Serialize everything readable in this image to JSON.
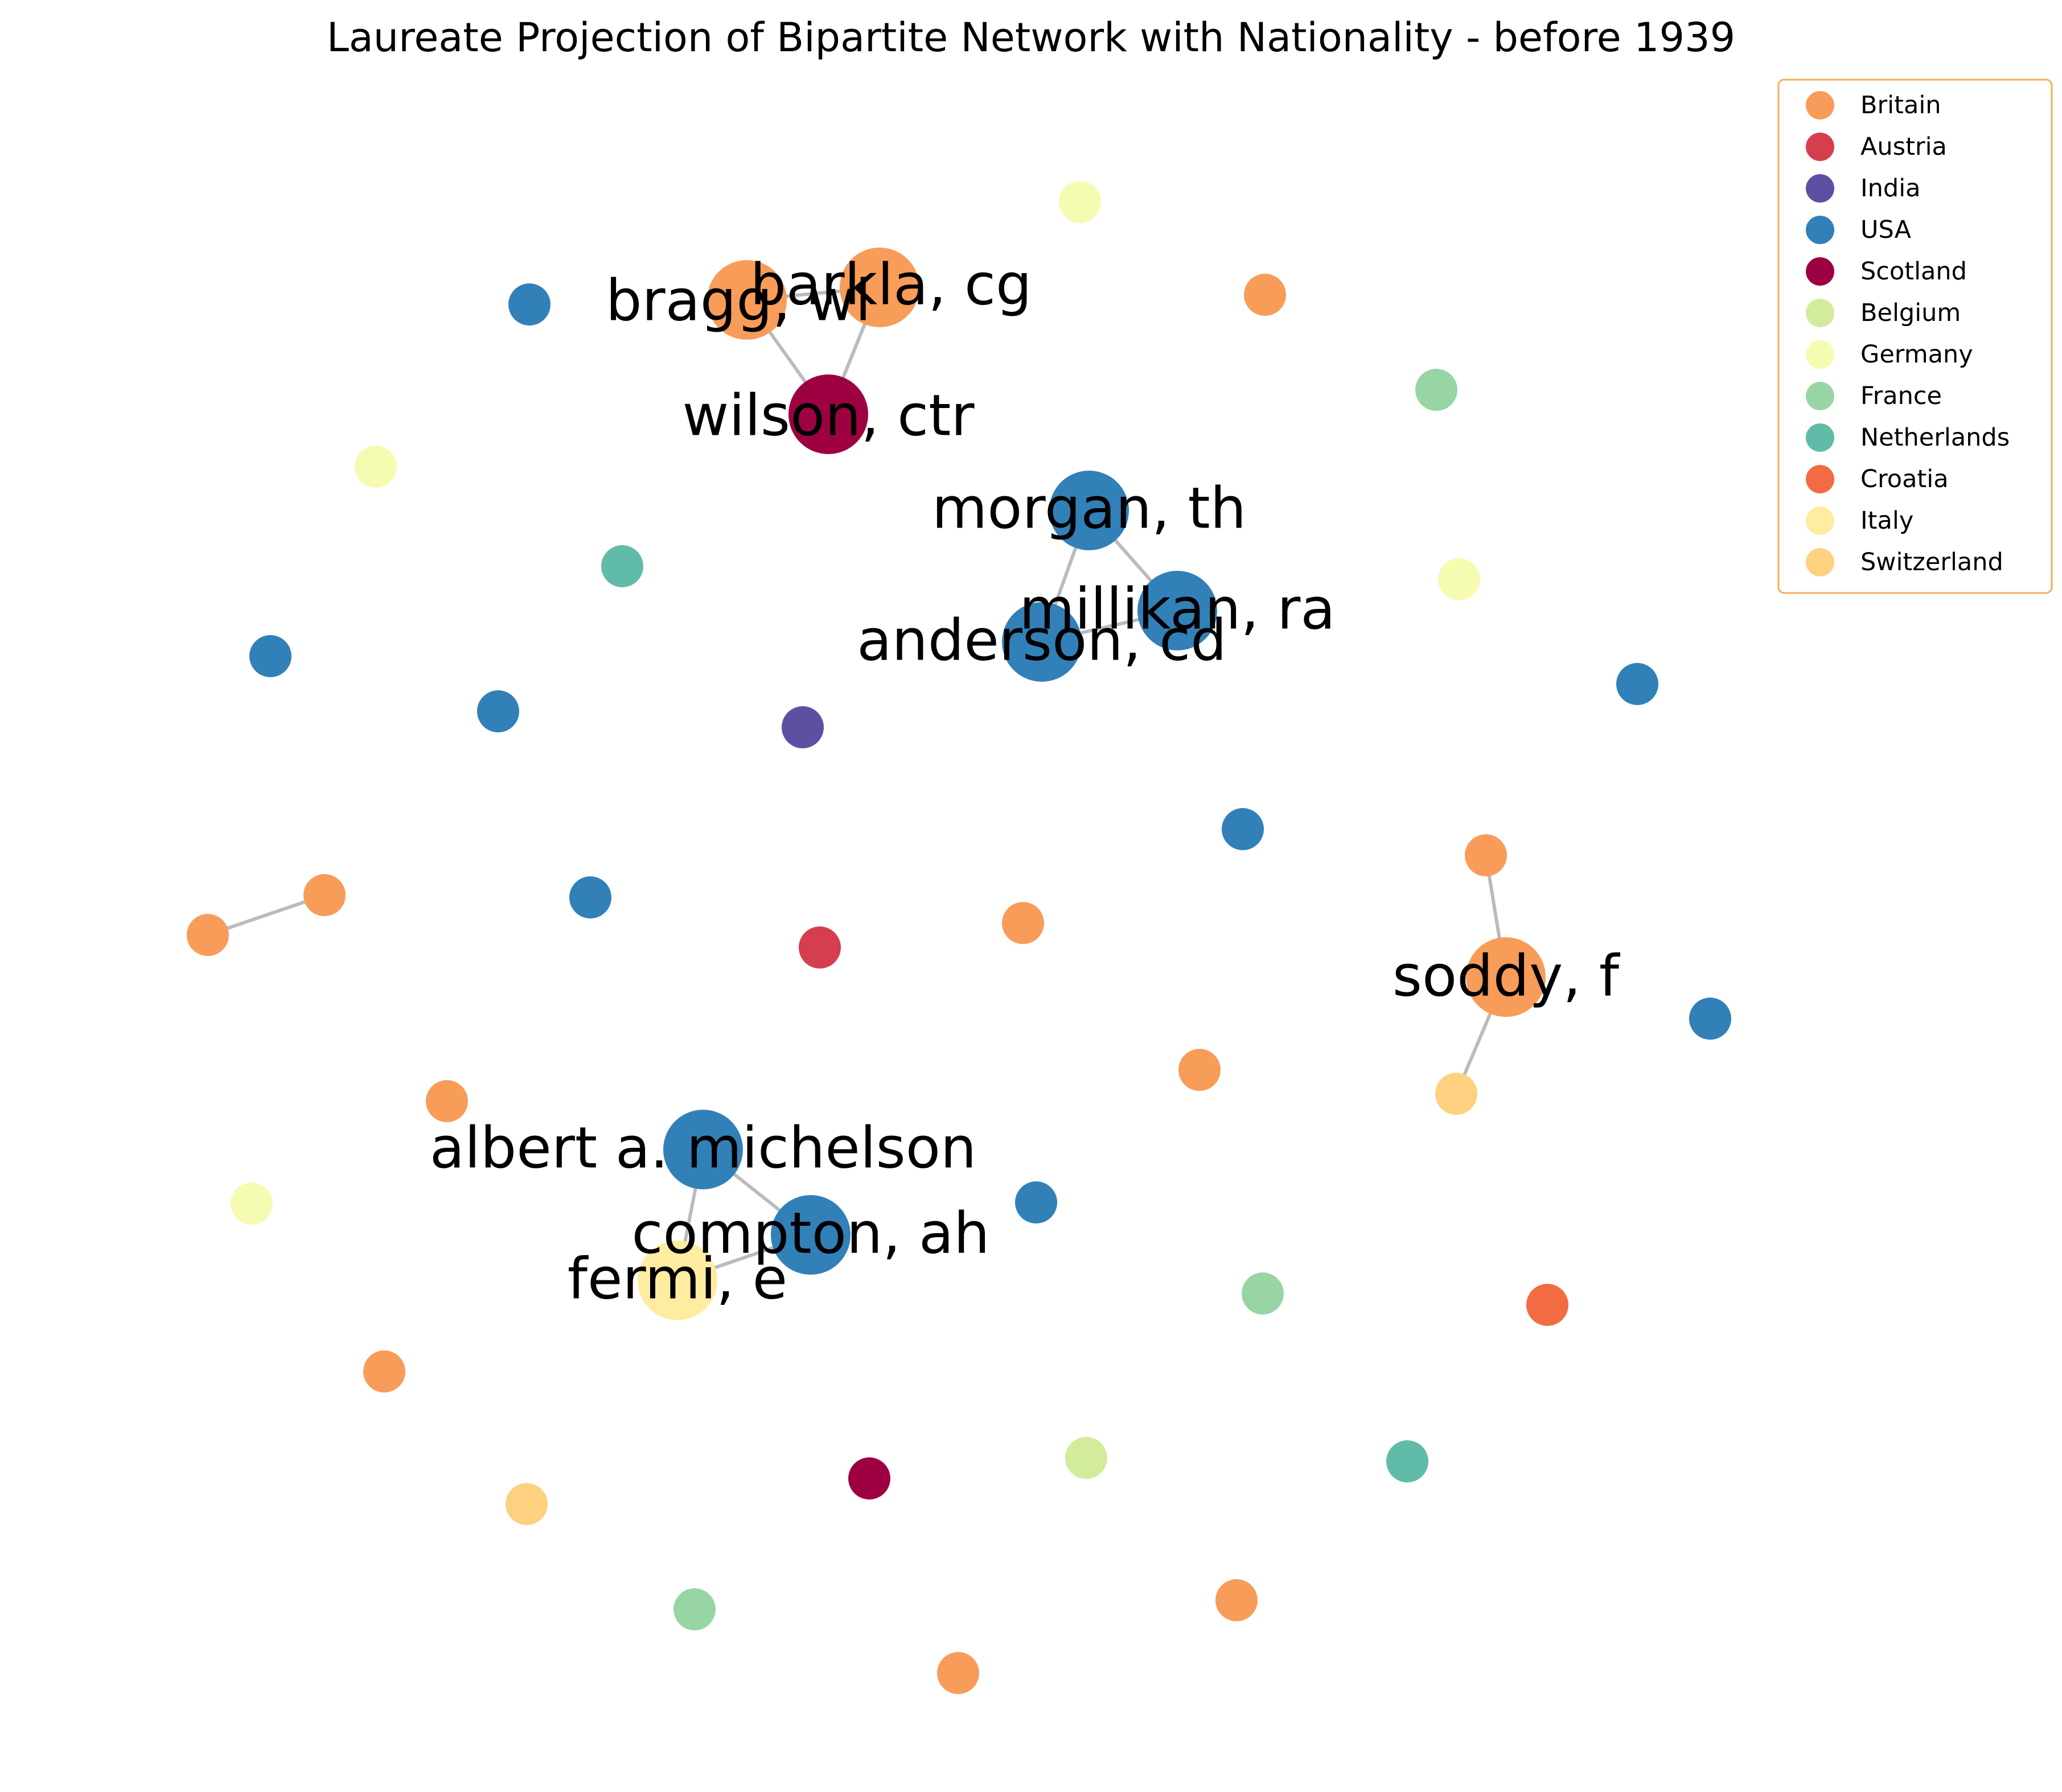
{
  "title": "Laureate Projection of Bipartite Network with Nationality - before 1939",
  "legend": [
    {
      "label": "Britain",
      "color": "#f89c59"
    },
    {
      "label": "Austria",
      "color": "#d53e4f"
    },
    {
      "label": "India",
      "color": "#5e4fa2"
    },
    {
      "label": "USA",
      "color": "#3280b8"
    },
    {
      "label": "Scotland",
      "color": "#9e0142"
    },
    {
      "label": "Belgium",
      "color": "#d2ec9b"
    },
    {
      "label": "Germany",
      "color": "#f5fbb1"
    },
    {
      "label": "France",
      "color": "#98d5a4"
    },
    {
      "label": "Netherlands",
      "color": "#60bba8"
    },
    {
      "label": "Croatia",
      "color": "#f26b43"
    },
    {
      "label": "Italy",
      "color": "#feeda1"
    },
    {
      "label": "Switzerland",
      "color": "#fdd180"
    }
  ],
  "labels": {
    "barkla": "barkla, cg",
    "bragg": "bragg, wl",
    "wilson": "wilson, ctr",
    "morgan": "morgan, th",
    "millikan": "millikan, ra",
    "anderson": "anderson, cd",
    "soddy": "soddy, f",
    "michelson": "albert a. michelson",
    "compton": "compton, ah",
    "fermi": "fermi, e"
  },
  "nodes": [
    {
      "id": "barkla",
      "nationality": "Britain",
      "labeled": true
    },
    {
      "id": "bragg",
      "nationality": "Britain",
      "labeled": true
    },
    {
      "id": "wilson",
      "nationality": "Scotland",
      "labeled": true
    },
    {
      "id": "morgan",
      "nationality": "USA",
      "labeled": true
    },
    {
      "id": "millikan",
      "nationality": "USA",
      "labeled": true
    },
    {
      "id": "anderson",
      "nationality": "USA",
      "labeled": true
    },
    {
      "id": "soddy",
      "nationality": "Britain",
      "labeled": true
    },
    {
      "id": "michelson",
      "nationality": "USA",
      "labeled": true
    },
    {
      "id": "compton",
      "nationality": "USA",
      "labeled": true
    },
    {
      "id": "fermi",
      "nationality": "Italy",
      "labeled": true
    },
    {
      "id": "n1",
      "nationality": "Germany"
    },
    {
      "id": "n2",
      "nationality": "Britain"
    },
    {
      "id": "n3",
      "nationality": "USA"
    },
    {
      "id": "n4",
      "nationality": "France"
    },
    {
      "id": "n5",
      "nationality": "Germany"
    },
    {
      "id": "n6",
      "nationality": "Netherlands"
    },
    {
      "id": "n7",
      "nationality": "Germany"
    },
    {
      "id": "n8",
      "nationality": "USA"
    },
    {
      "id": "n9",
      "nationality": "USA"
    },
    {
      "id": "n10",
      "nationality": "India"
    },
    {
      "id": "n11",
      "nationality": "USA"
    },
    {
      "id": "n12",
      "nationality": "USA"
    },
    {
      "id": "n13",
      "nationality": "Britain"
    },
    {
      "id": "n14",
      "nationality": "Britain"
    },
    {
      "id": "n15",
      "nationality": "Britain"
    },
    {
      "id": "n16",
      "nationality": "USA"
    },
    {
      "id": "n17",
      "nationality": "Austria"
    },
    {
      "id": "n18",
      "nationality": "Britain"
    },
    {
      "id": "n19",
      "nationality": "USA"
    },
    {
      "id": "n20",
      "nationality": "Britain"
    },
    {
      "id": "n21",
      "nationality": "Britain"
    },
    {
      "id": "n22",
      "nationality": "Switzerland"
    },
    {
      "id": "n23",
      "nationality": "Germany"
    },
    {
      "id": "n24",
      "nationality": "USA"
    },
    {
      "id": "n25",
      "nationality": "France"
    },
    {
      "id": "n26",
      "nationality": "Croatia"
    },
    {
      "id": "n27",
      "nationality": "Britain"
    },
    {
      "id": "n28",
      "nationality": "Switzerland"
    },
    {
      "id": "n29",
      "nationality": "Scotland"
    },
    {
      "id": "n30",
      "nationality": "Belgium"
    },
    {
      "id": "n31",
      "nationality": "Netherlands"
    },
    {
      "id": "n32",
      "nationality": "France"
    },
    {
      "id": "n33",
      "nationality": "Britain"
    },
    {
      "id": "n34",
      "nationality": "Britain"
    }
  ],
  "edges": [
    [
      "bragg",
      "barkla"
    ],
    [
      "bragg",
      "wilson"
    ],
    [
      "barkla",
      "wilson"
    ],
    [
      "morgan",
      "millikan"
    ],
    [
      "morgan",
      "anderson"
    ],
    [
      "millikan",
      "anderson"
    ],
    [
      "n15",
      "soddy"
    ],
    [
      "soddy",
      "n22"
    ],
    [
      "n13",
      "n14"
    ],
    [
      "michelson",
      "compton"
    ],
    [
      "michelson",
      "fermi"
    ],
    [
      "compton",
      "fermi"
    ]
  ]
}
